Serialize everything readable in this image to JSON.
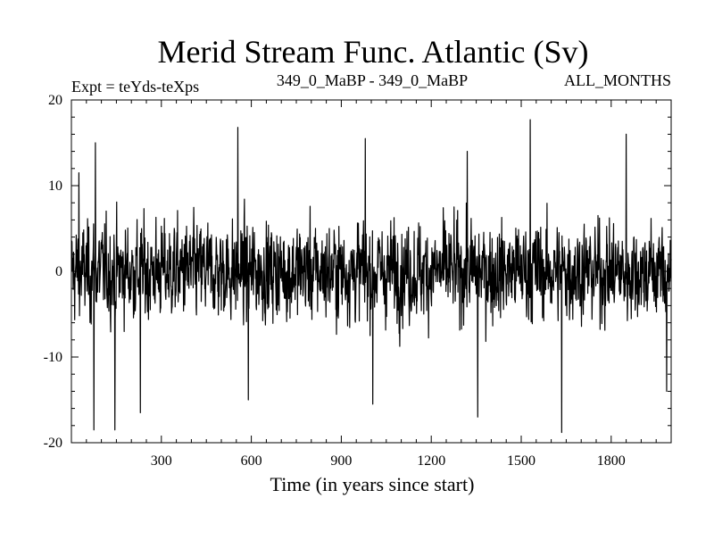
{
  "chart_data": {
    "type": "line",
    "title": "Merid Stream Func. Atlantic (Sv)",
    "subtitle_left": "Expt = teYds-teXps",
    "subtitle_center": "349_0_MaBP - 349_0_MaBP",
    "subtitle_right": "ALL_MONTHS",
    "xlabel": "Time (in years since start)",
    "ylabel": "",
    "xlim": [
      0,
      2000
    ],
    "ylim": [
      -20,
      20
    ],
    "x_ticks": [
      300,
      600,
      900,
      1200,
      1500,
      1800
    ],
    "y_ticks": [
      -20,
      -10,
      0,
      10,
      20
    ],
    "grid": false,
    "series": [
      {
        "color": "#000000",
        "x_start": 1,
        "x_step": 1,
        "n_points": 2000,
        "mean": 0,
        "typical_range": [
          -10,
          10
        ],
        "peaks": [
          {
            "x": 25,
            "y": 11.5
          },
          {
            "x": 80,
            "y": 15
          },
          {
            "x": 75,
            "y": -18.5
          },
          {
            "x": 145,
            "y": -18.5
          },
          {
            "x": 230,
            "y": -16.5
          },
          {
            "x": 555,
            "y": 16.8
          },
          {
            "x": 590,
            "y": -15
          },
          {
            "x": 980,
            "y": 15.5
          },
          {
            "x": 1005,
            "y": -15.5
          },
          {
            "x": 1320,
            "y": 14
          },
          {
            "x": 1355,
            "y": -17
          },
          {
            "x": 1530,
            "y": 17.7
          },
          {
            "x": 1635,
            "y": -18.8
          },
          {
            "x": 1850,
            "y": 16
          },
          {
            "x": 1985,
            "y": -14
          }
        ]
      }
    ]
  }
}
